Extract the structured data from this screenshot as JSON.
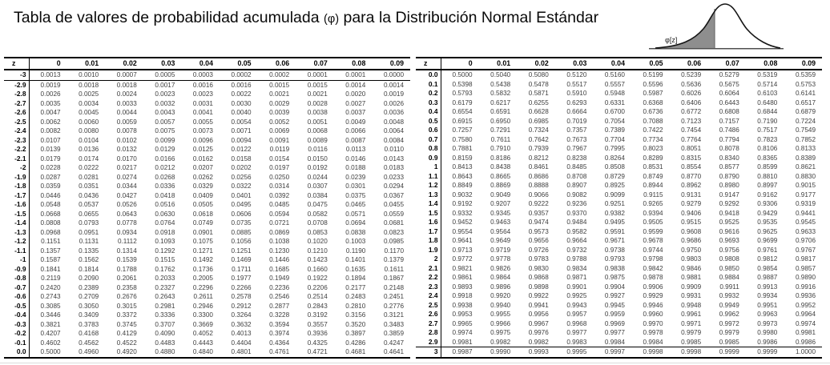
{
  "title": {
    "part1": "Tabla de valores de probabilidad acumulada ",
    "phi": "(φ)",
    "part2": " para la Distribución Normal Estándar"
  },
  "curve": {
    "label": "φ[z]"
  },
  "colors": {
    "curve_fill": "#8e8e8e",
    "border": "#000000",
    "value_text": "#3f3f3f"
  },
  "columns": [
    "z",
    "0",
    "0.01",
    "0.02",
    "0.03",
    "0.04",
    "0.05",
    "0.06",
    "0.07",
    "0.08",
    "0.09"
  ],
  "negative_table": {
    "rows": [
      [
        "-3",
        "0.0013",
        "0.0010",
        "0.0007",
        "0.0005",
        "0.0003",
        "0.0002",
        "0.0002",
        "0.0001",
        "0.0001",
        "0.0000"
      ],
      [
        "-2.9",
        "0.0019",
        "0.0018",
        "0.0018",
        "0.0017",
        "0.0016",
        "0.0016",
        "0.0015",
        "0.0015",
        "0.0014",
        "0.0014"
      ],
      [
        "-2.8",
        "0.0026",
        "0.0025",
        "0.0024",
        "0.0023",
        "0.0023",
        "0.0022",
        "0.0021",
        "0.0021",
        "0.0020",
        "0.0019"
      ],
      [
        "-2.7",
        "0.0035",
        "0.0034",
        "0.0033",
        "0.0032",
        "0.0031",
        "0.0030",
        "0.0029",
        "0.0028",
        "0.0027",
        "0.0026"
      ],
      [
        "-2.6",
        "0.0047",
        "0.0045",
        "0.0044",
        "0.0043",
        "0.0041",
        "0.0040",
        "0.0039",
        "0.0038",
        "0.0037",
        "0.0036"
      ],
      [
        "-2.5",
        "0.0062",
        "0.0060",
        "0.0059",
        "0.0057",
        "0.0055",
        "0.0054",
        "0.0052",
        "0.0051",
        "0.0049",
        "0.0048"
      ],
      [
        "-2.4",
        "0.0082",
        "0.0080",
        "0.0078",
        "0.0075",
        "0.0073",
        "0.0071",
        "0.0069",
        "0.0068",
        "0.0066",
        "0.0064"
      ],
      [
        "-2.3",
        "0.0107",
        "0.0104",
        "0.0102",
        "0.0099",
        "0.0096",
        "0.0094",
        "0.0091",
        "0.0089",
        "0.0087",
        "0.0084"
      ],
      [
        "-2.2",
        "0.0139",
        "0.0136",
        "0.0132",
        "0.0129",
        "0.0125",
        "0.0122",
        "0.0119",
        "0.0116",
        "0.0113",
        "0.0110"
      ],
      [
        "-2.1",
        "0.0179",
        "0.0174",
        "0.0170",
        "0.0166",
        "0.0162",
        "0.0158",
        "0.0154",
        "0.0150",
        "0.0146",
        "0.0143"
      ],
      [
        "-2",
        "0.0228",
        "0.0222",
        "0.0217",
        "0.0212",
        "0.0207",
        "0.0202",
        "0.0197",
        "0.0192",
        "0.0188",
        "0.0183"
      ],
      [
        "-1.9",
        "0.0287",
        "0.0281",
        "0.0274",
        "0.0268",
        "0.0262",
        "0.0256",
        "0.0250",
        "0.0244",
        "0.0239",
        "0.0233"
      ],
      [
        "-1.8",
        "0.0359",
        "0.0351",
        "0.0344",
        "0.0336",
        "0.0329",
        "0.0322",
        "0.0314",
        "0.0307",
        "0.0301",
        "0.0294"
      ],
      [
        "-1.7",
        "0.0446",
        "0.0436",
        "0.0427",
        "0.0418",
        "0.0409",
        "0.0401",
        "0.0392",
        "0.0384",
        "0.0375",
        "0.0367"
      ],
      [
        "-1.6",
        "0.0548",
        "0.0537",
        "0.0526",
        "0.0516",
        "0.0505",
        "0.0495",
        "0.0485",
        "0.0475",
        "0.0465",
        "0.0455"
      ],
      [
        "-1.5",
        "0.0668",
        "0.0655",
        "0.0643",
        "0.0630",
        "0.0618",
        "0.0606",
        "0.0594",
        "0.0582",
        "0.0571",
        "0.0559"
      ],
      [
        "-1.4",
        "0.0808",
        "0.0793",
        "0.0778",
        "0.0764",
        "0.0749",
        "0.0735",
        "0.0721",
        "0.0708",
        "0.0694",
        "0.0681"
      ],
      [
        "-1.3",
        "0.0968",
        "0.0951",
        "0.0934",
        "0.0918",
        "0.0901",
        "0.0885",
        "0.0869",
        "0.0853",
        "0.0838",
        "0.0823"
      ],
      [
        "-1.2",
        "0.1151",
        "0.1131",
        "0.1112",
        "0.1093",
        "0.1075",
        "0.1056",
        "0.1038",
        "0.1020",
        "0.1003",
        "0.0985"
      ],
      [
        "-1.1",
        "0.1357",
        "0.1335",
        "0.1314",
        "0.1292",
        "0.1271",
        "0.1251",
        "0.1230",
        "0.1210",
        "0.1190",
        "0.1170"
      ],
      [
        "-1",
        "0.1587",
        "0.1562",
        "0.1539",
        "0.1515",
        "0.1492",
        "0.1469",
        "0.1446",
        "0.1423",
        "0.1401",
        "0.1379"
      ],
      [
        "-0.9",
        "0.1841",
        "0.1814",
        "0.1788",
        "0.1762",
        "0.1736",
        "0.1711",
        "0.1685",
        "0.1660",
        "0.1635",
        "0.1611"
      ],
      [
        "-0.8",
        "0.2119",
        "0.2090",
        "0.2061",
        "0.2033",
        "0.2005",
        "0.1977",
        "0.1949",
        "0.1922",
        "0.1894",
        "0.1867"
      ],
      [
        "-0.7",
        "0.2420",
        "0.2389",
        "0.2358",
        "0.2327",
        "0.2296",
        "0.2266",
        "0.2236",
        "0.2206",
        "0.2177",
        "0.2148"
      ],
      [
        "-0.6",
        "0.2743",
        "0.2709",
        "0.2676",
        "0.2643",
        "0.2611",
        "0.2578",
        "0.2546",
        "0.2514",
        "0.2483",
        "0.2451"
      ],
      [
        "-0.5",
        "0.3085",
        "0.3050",
        "0.3015",
        "0.2981",
        "0.2946",
        "0.2912",
        "0.2877",
        "0.2843",
        "0.2810",
        "0.2776"
      ],
      [
        "-0.4",
        "0.3446",
        "0.3409",
        "0.3372",
        "0.3336",
        "0.3300",
        "0.3264",
        "0.3228",
        "0.3192",
        "0.3156",
        "0.3121"
      ],
      [
        "-0.3",
        "0.3821",
        "0.3783",
        "0.3745",
        "0.3707",
        "0.3669",
        "0.3632",
        "0.3594",
        "0.3557",
        "0.3520",
        "0.3483"
      ],
      [
        "-0.2",
        "0.4207",
        "0.4168",
        "0.4129",
        "0.4090",
        "0.4052",
        "0.4013",
        "0.3974",
        "0.3936",
        "0.3897",
        "0.3859"
      ],
      [
        "-0.1",
        "0.4602",
        "0.4562",
        "0.4522",
        "0.4483",
        "0.4443",
        "0.4404",
        "0.4364",
        "0.4325",
        "0.4286",
        "0.4247"
      ],
      [
        "0.0",
        "0.5000",
        "0.4960",
        "0.4920",
        "0.4880",
        "0.4840",
        "0.4801",
        "0.4761",
        "0.4721",
        "0.4681",
        "0.4641"
      ]
    ]
  },
  "positive_table": {
    "rows": [
      [
        "0.0",
        "0.5000",
        "0.5040",
        "0.5080",
        "0.5120",
        "0.5160",
        "0.5199",
        "0.5239",
        "0.5279",
        "0.5319",
        "0.5359"
      ],
      [
        "0.1",
        "0.5398",
        "0.5438",
        "0.5478",
        "0.5517",
        "0.5557",
        "0.5596",
        "0.5636",
        "0.5675",
        "0.5714",
        "0.5753"
      ],
      [
        "0.2",
        "0.5793",
        "0.5832",
        "0.5871",
        "0.5910",
        "0.5948",
        "0.5987",
        "0.6026",
        "0.6064",
        "0.6103",
        "0.6141"
      ],
      [
        "0.3",
        "0.6179",
        "0.6217",
        "0.6255",
        "0.6293",
        "0.6331",
        "0.6368",
        "0.6406",
        "0.6443",
        "0.6480",
        "0.6517"
      ],
      [
        "0.4",
        "0.6554",
        "0.6591",
        "0.6628",
        "0.6664",
        "0.6700",
        "0.6736",
        "0.6772",
        "0.6808",
        "0.6844",
        "0.6879"
      ],
      [
        "0.5",
        "0.6915",
        "0.6950",
        "0.6985",
        "0.7019",
        "0.7054",
        "0.7088",
        "0.7123",
        "0.7157",
        "0.7190",
        "0.7224"
      ],
      [
        "0.6",
        "0.7257",
        "0.7291",
        "0.7324",
        "0.7357",
        "0.7389",
        "0.7422",
        "0.7454",
        "0.7486",
        "0.7517",
        "0.7549"
      ],
      [
        "0.7",
        "0.7580",
        "0.7611",
        "0.7642",
        "0.7673",
        "0.7704",
        "0.7734",
        "0.7764",
        "0.7794",
        "0.7823",
        "0.7852"
      ],
      [
        "0.8",
        "0.7881",
        "0.7910",
        "0.7939",
        "0.7967",
        "0.7995",
        "0.8023",
        "0.8051",
        "0.8078",
        "0.8106",
        "0.8133"
      ],
      [
        "0.9",
        "0.8159",
        "0.8186",
        "0.8212",
        "0.8238",
        "0.8264",
        "0.8289",
        "0.8315",
        "0.8340",
        "0.8365",
        "0.8389"
      ],
      [
        "1",
        "0.8413",
        "0.8438",
        "0.8461",
        "0.8485",
        "0.8508",
        "0.8531",
        "0.8554",
        "0.8577",
        "0.8599",
        "0.8621"
      ],
      [
        "1.1",
        "0.8643",
        "0.8665",
        "0.8686",
        "0.8708",
        "0.8729",
        "0.8749",
        "0.8770",
        "0.8790",
        "0.8810",
        "0.8830"
      ],
      [
        "1.2",
        "0.8849",
        "0.8869",
        "0.8888",
        "0.8907",
        "0.8925",
        "0.8944",
        "0.8962",
        "0.8980",
        "0.8997",
        "0.9015"
      ],
      [
        "1.3",
        "0.9032",
        "0.9049",
        "0.9066",
        "0.9082",
        "0.9099",
        "0.9115",
        "0.9131",
        "0.9147",
        "0.9162",
        "0.9177"
      ],
      [
        "1.4",
        "0.9192",
        "0.9207",
        "0.9222",
        "0.9236",
        "0.9251",
        "0.9265",
        "0.9279",
        "0.9292",
        "0.9306",
        "0.9319"
      ],
      [
        "1.5",
        "0.9332",
        "0.9345",
        "0.9357",
        "0.9370",
        "0.9382",
        "0.9394",
        "0.9406",
        "0.9418",
        "0.9429",
        "0.9441"
      ],
      [
        "1.6",
        "0.9452",
        "0.9463",
        "0.9474",
        "0.9484",
        "0.9495",
        "0.9505",
        "0.9515",
        "0.9525",
        "0.9535",
        "0.9545"
      ],
      [
        "1.7",
        "0.9554",
        "0.9564",
        "0.9573",
        "0.9582",
        "0.9591",
        "0.9599",
        "0.9608",
        "0.9616",
        "0.9625",
        "0.9633"
      ],
      [
        "1.8",
        "0.9641",
        "0.9649",
        "0.9656",
        "0.9664",
        "0.9671",
        "0.9678",
        "0.9686",
        "0.9693",
        "0.9699",
        "0.9706"
      ],
      [
        "1.9",
        "0.9713",
        "0.9719",
        "0.9726",
        "0.9732",
        "0.9738",
        "0.9744",
        "0.9750",
        "0.9756",
        "0.9761",
        "0.9767"
      ],
      [
        "2",
        "0.9772",
        "0.9778",
        "0.9783",
        "0.9788",
        "0.9793",
        "0.9798",
        "0.9803",
        "0.9808",
        "0.9812",
        "0.9817"
      ],
      [
        "2.1",
        "0.9821",
        "0.9826",
        "0.9830",
        "0.9834",
        "0.9838",
        "0.9842",
        "0.9846",
        "0.9850",
        "0.9854",
        "0.9857"
      ],
      [
        "2.2",
        "0.9861",
        "0.9864",
        "0.9868",
        "0.9871",
        "0.9875",
        "0.9878",
        "0.9881",
        "0.9884",
        "0.9887",
        "0.9890"
      ],
      [
        "2.3",
        "0.9893",
        "0.9896",
        "0.9898",
        "0.9901",
        "0.9904",
        "0.9906",
        "0.9909",
        "0.9911",
        "0.9913",
        "0.9916"
      ],
      [
        "2.4",
        "0.9918",
        "0.9920",
        "0.9922",
        "0.9925",
        "0.9927",
        "0.9929",
        "0.9931",
        "0.9932",
        "0.9934",
        "0.9936"
      ],
      [
        "2.5",
        "0.9938",
        "0.9940",
        "0.9941",
        "0.9943",
        "0.9945",
        "0.9946",
        "0.9948",
        "0.9949",
        "0.9951",
        "0.9952"
      ],
      [
        "2.6",
        "0.9953",
        "0.9955",
        "0.9956",
        "0.9957",
        "0.9959",
        "0.9960",
        "0.9961",
        "0.9962",
        "0.9963",
        "0.9964"
      ],
      [
        "2.7",
        "0.9965",
        "0.9966",
        "0.9967",
        "0.9968",
        "0.9969",
        "0.9970",
        "0.9971",
        "0.9972",
        "0.9973",
        "0.9974"
      ],
      [
        "2.8",
        "0.9974",
        "0.9975",
        "0.9976",
        "0.9977",
        "0.9977",
        "0.9978",
        "0.9979",
        "0.9979",
        "0.9980",
        "0.9981"
      ],
      [
        "2.9",
        "0.9981",
        "0.9982",
        "0.9982",
        "0.9983",
        "0.9984",
        "0.9984",
        "0.9985",
        "0.9985",
        "0.9986",
        "0.9986"
      ],
      [
        "3",
        "0.9987",
        "0.9990",
        "0.9993",
        "0.9995",
        "0.9997",
        "0.9998",
        "0.9998",
        "0.9999",
        "0.9999",
        "1.0000"
      ]
    ]
  }
}
